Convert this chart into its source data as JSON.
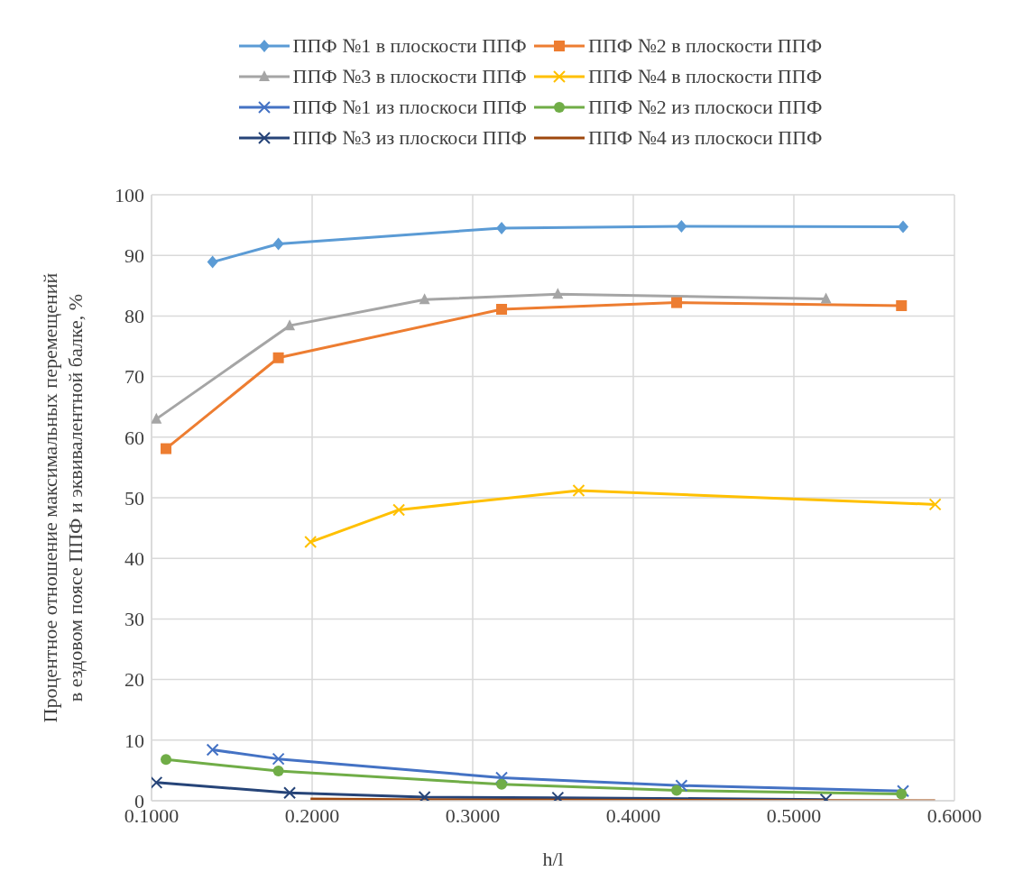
{
  "chart_data": {
    "type": "line",
    "xlabel": "h/l",
    "ylabel": "Процентное отношение максимальных перемещений в ездовом поясе ППФ и эквивалентной балке, %",
    "xlim": [
      0.1,
      0.6
    ],
    "xticks": [
      {
        "value": 0.1,
        "label": "0.1000"
      },
      {
        "value": 0.2,
        "label": "0.2000"
      },
      {
        "value": 0.3,
        "label": "0.3000"
      },
      {
        "value": 0.4,
        "label": "0.4000"
      },
      {
        "value": 0.5,
        "label": "0.5000"
      },
      {
        "value": 0.6,
        "label": "0.6000"
      }
    ],
    "ylim": [
      0,
      100
    ],
    "yticks": [
      0,
      10,
      20,
      30,
      40,
      50,
      60,
      70,
      80,
      90,
      100
    ],
    "grid": true,
    "legend": "top",
    "line_style": "solid",
    "series": [
      {
        "name": "ППФ №1 в плоскости ППФ",
        "color": "#5b9bd5",
        "marker": "diamond",
        "x": [
          0.138,
          0.179,
          0.318,
          0.43,
          0.568
        ],
        "values": [
          88.9,
          91.9,
          94.5,
          94.8,
          94.7
        ]
      },
      {
        "name": "ППФ №2 в плоскости ППФ",
        "color": "#ed7d31",
        "marker": "square",
        "x": [
          0.109,
          0.179,
          0.318,
          0.427,
          0.567
        ],
        "values": [
          58.1,
          73.1,
          81.1,
          82.2,
          81.7
        ]
      },
      {
        "name": "ППФ №3 в плоскости ППФ",
        "color": "#a5a5a5",
        "marker": "triangle",
        "x": [
          0.103,
          0.186,
          0.27,
          0.353,
          0.52
        ],
        "values": [
          63,
          78.4,
          82.7,
          83.6,
          82.8
        ]
      },
      {
        "name": "ППФ №4 в плоскости ППФ",
        "color": "#ffc000",
        "marker": "cross",
        "x": [
          0.199,
          0.254,
          0.366,
          0.588
        ],
        "values": [
          42.7,
          48,
          51.2,
          48.9
        ]
      },
      {
        "name": "ППФ №1 из плоскоси ППФ",
        "color": "#4472c4",
        "marker": "cross",
        "x": [
          0.138,
          0.179,
          0.318,
          0.43,
          0.568
        ],
        "values": [
          8.4,
          6.9,
          3.8,
          2.5,
          1.6
        ]
      },
      {
        "name": "ППФ №2 из плоскоси ППФ",
        "color": "#70ad47",
        "marker": "circle",
        "x": [
          0.109,
          0.179,
          0.318,
          0.427,
          0.567
        ],
        "values": [
          6.8,
          4.9,
          2.7,
          1.7,
          1.1
        ]
      },
      {
        "name": "ППФ №3 из плоскоси ППФ",
        "color": "#264478",
        "marker": "cross",
        "x": [
          0.103,
          0.186,
          0.27,
          0.353,
          0.52
        ],
        "values": [
          3,
          1.3,
          0.6,
          0.5,
          0.2
        ]
      },
      {
        "name": "ППФ №4 из плоскоси ППФ",
        "color": "#9e480e",
        "marker": "none",
        "x": [
          0.199,
          0.254,
          0.366,
          0.588
        ],
        "values": [
          0.3,
          0.2,
          0.1,
          0
        ]
      }
    ]
  }
}
